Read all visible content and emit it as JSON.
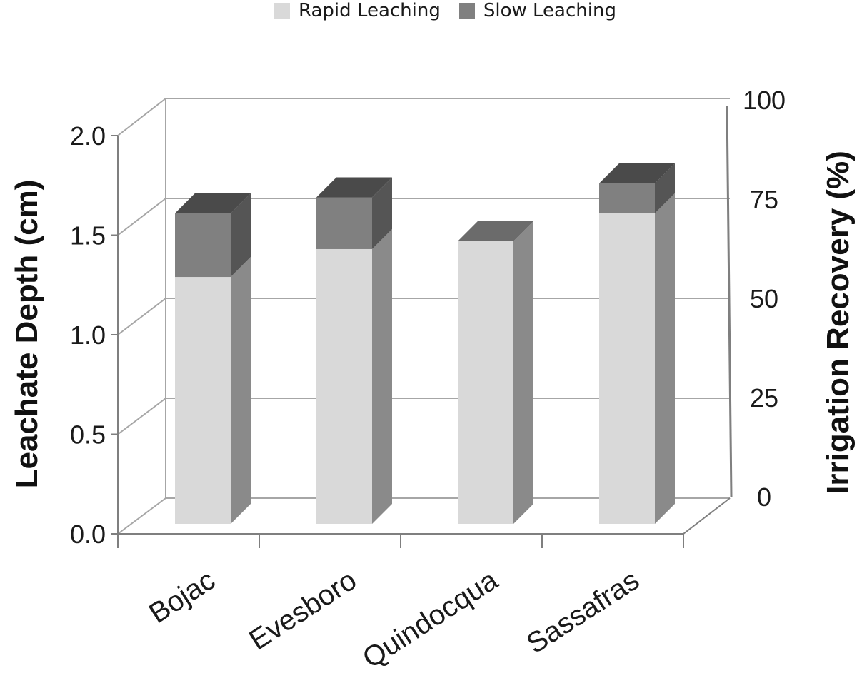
{
  "chart_data": {
    "type": "bar",
    "stacked": true,
    "three_d": true,
    "categories": [
      "Bojac",
      "Evesboro",
      "Quindocqua",
      "Sassafras"
    ],
    "series": [
      {
        "name": "Rapid Leaching",
        "values": [
          1.24,
          1.38,
          1.42,
          1.56
        ],
        "color": "#d9d9d9"
      },
      {
        "name": "Slow Leaching",
        "values": [
          0.32,
          0.26,
          0.0,
          0.15
        ],
        "color": "#808080"
      }
    ],
    "ylabel": "Leachate Depth (cm)",
    "ylim": [
      0,
      2.0
    ],
    "yticks": [
      "0.0",
      "0.5",
      "1.0",
      "1.5",
      "2.0"
    ],
    "y2label": "Irrigation Recovery (%)",
    "y2lim": [
      0,
      100
    ],
    "y2ticks": [
      "0",
      "25",
      "50",
      "75",
      "100"
    ],
    "legend_position": "top",
    "grid": true
  }
}
